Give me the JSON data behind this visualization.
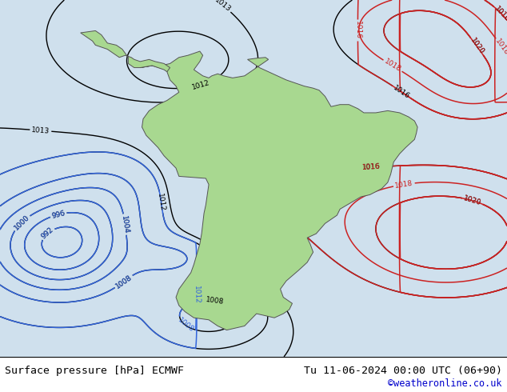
{
  "title_left": "Surface pressure [hPa] ECMWF",
  "title_right": "Tu 11-06-2024 00:00 UTC (06+90)",
  "copyright": "©weatheronline.co.uk",
  "bg_color": "#cfe0ed",
  "land_color": "#a8d890",
  "fig_width": 6.34,
  "fig_height": 4.9,
  "dpi": 100,
  "footer_bg": "#ffffff",
  "footer_text_color": "#000000",
  "copyright_color": "#0000cc",
  "lon_min": -105,
  "lon_max": -20,
  "lat_min": -62,
  "lat_max": 25
}
